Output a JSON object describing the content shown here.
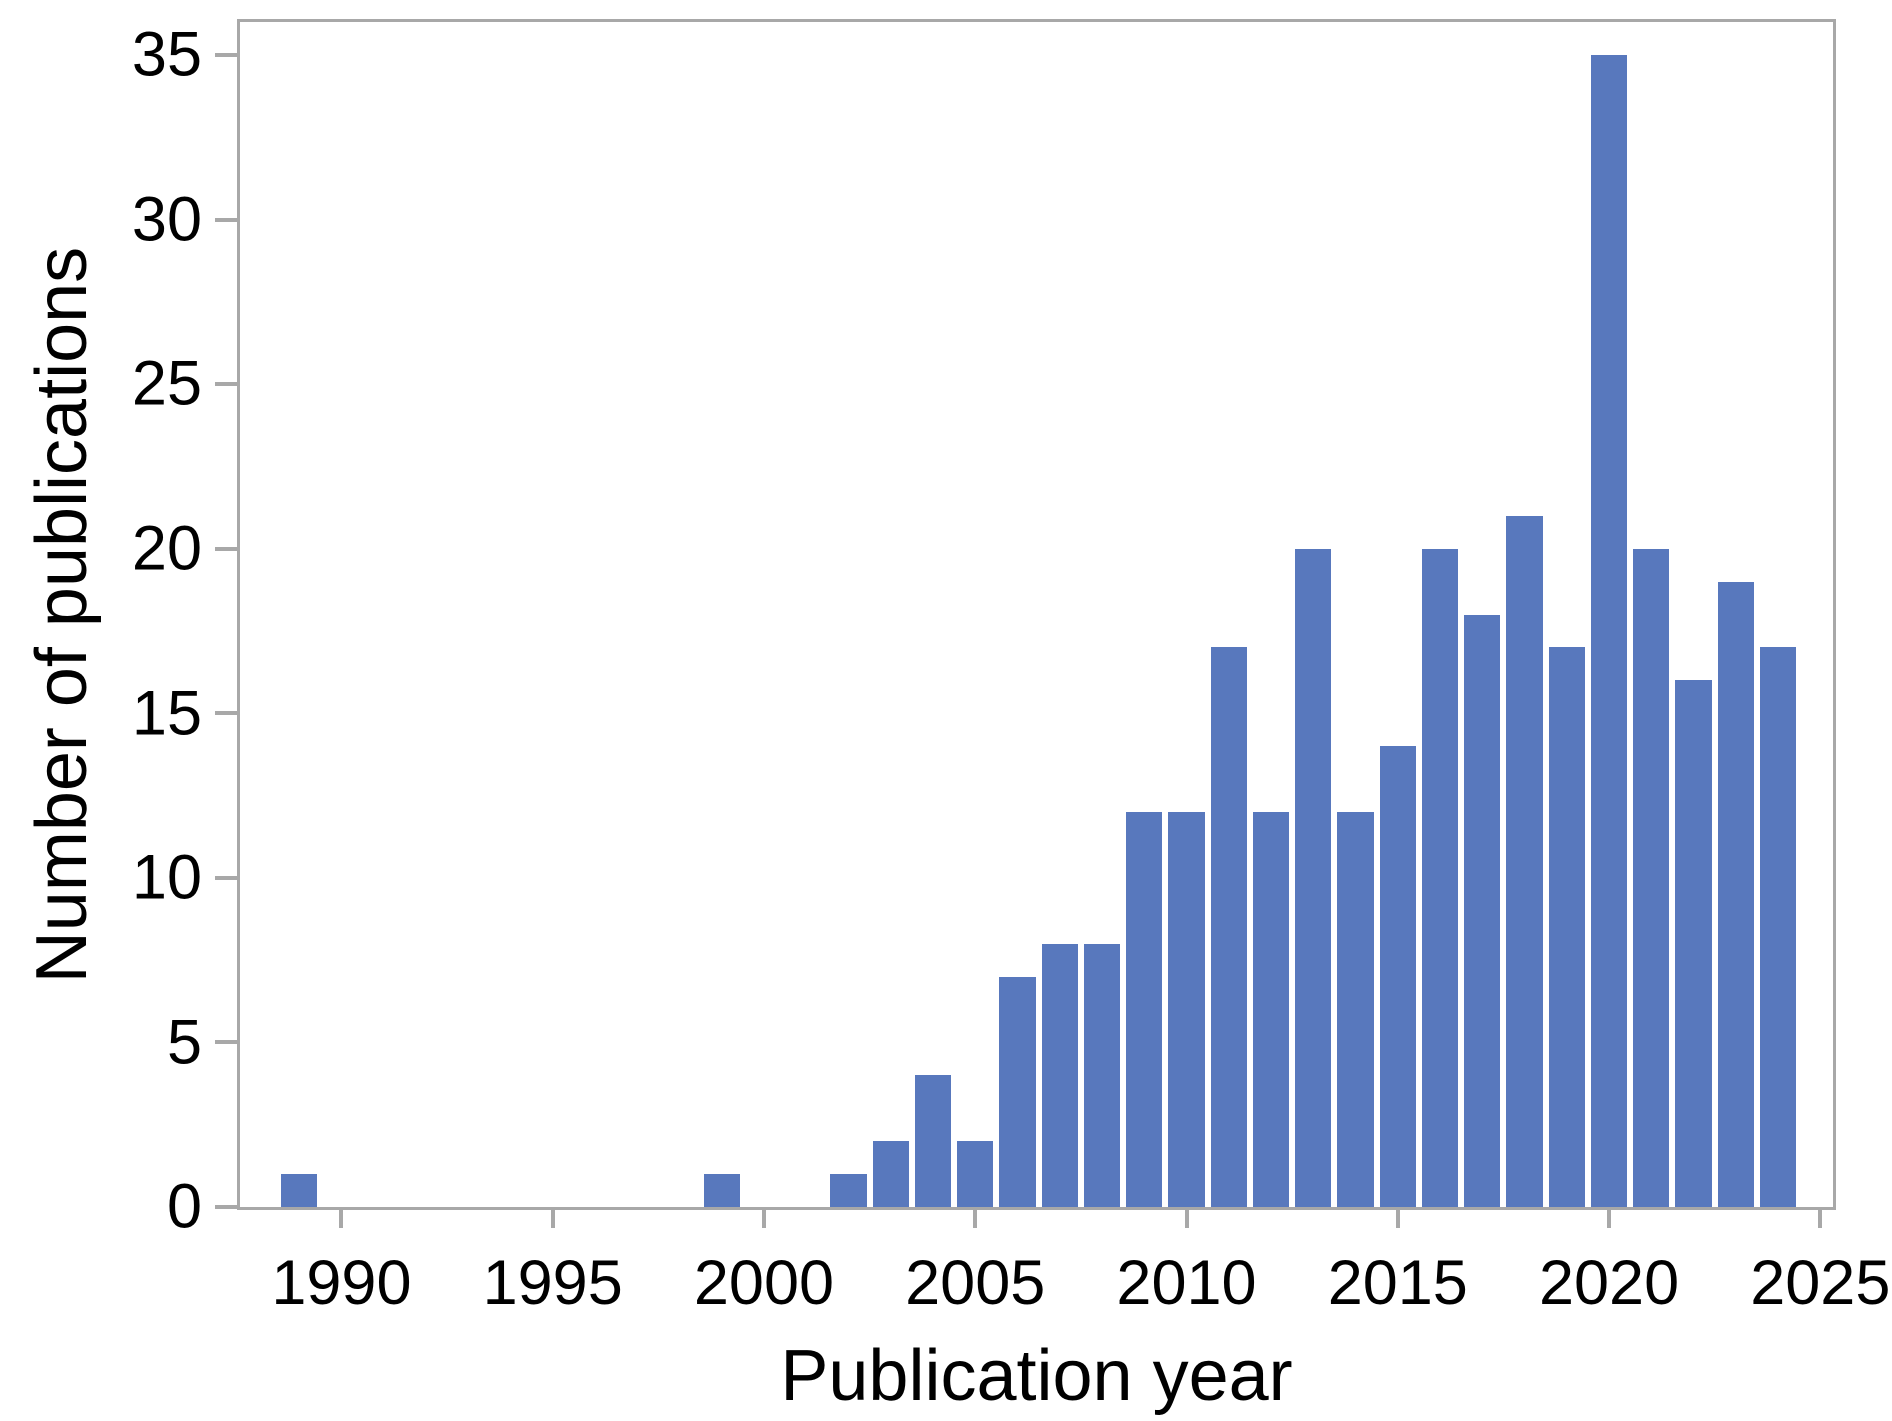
{
  "chart_data": {
    "type": "bar",
    "title": "",
    "xlabel": "Publication year",
    "ylabel": "Number of publications",
    "years": [
      1989,
      1990,
      1991,
      1992,
      1993,
      1994,
      1995,
      1996,
      1997,
      1998,
      1999,
      2000,
      2001,
      2002,
      2003,
      2004,
      2005,
      2006,
      2007,
      2008,
      2009,
      2010,
      2011,
      2012,
      2013,
      2014,
      2015,
      2016,
      2017,
      2018,
      2019,
      2020,
      2021,
      2022,
      2023,
      2024
    ],
    "values": [
      1,
      0,
      0,
      0,
      0,
      0,
      0,
      0,
      0,
      0,
      1,
      0,
      0,
      1,
      2,
      4,
      2,
      7,
      8,
      8,
      12,
      12,
      17,
      12,
      20,
      12,
      14,
      20,
      18,
      21,
      17,
      35,
      20,
      16,
      19,
      17
    ],
    "x_ticks": [
      1990,
      1995,
      2000,
      2005,
      2010,
      2015,
      2020,
      2025
    ],
    "y_ticks": [
      0,
      5,
      10,
      15,
      20,
      25,
      30,
      35
    ],
    "xlim": [
      1987.6,
      2025.3
    ],
    "ylim": [
      0,
      36
    ],
    "bar_width_years": 0.86,
    "grid": false,
    "legend": null,
    "bar_color": "#5878bd",
    "axis_color": "#a8a8a8",
    "label_color": "#000000"
  }
}
